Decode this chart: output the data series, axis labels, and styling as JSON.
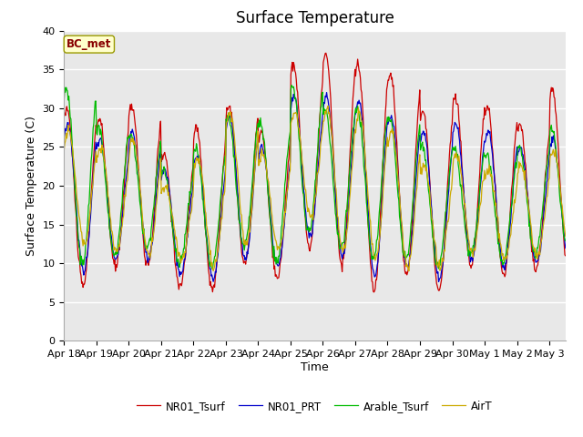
{
  "title": "Surface Temperature",
  "ylabel": "Surface Temperature (C)",
  "xlabel": "Time",
  "annotation": "BC_met",
  "ylim": [
    0,
    40
  ],
  "yticks": [
    0,
    5,
    10,
    15,
    20,
    25,
    30,
    35,
    40
  ],
  "xtick_labels": [
    "Apr 18",
    "Apr 19",
    "Apr 20",
    "Apr 21",
    "Apr 22",
    "Apr 23",
    "Apr 24",
    "Apr 25",
    "Apr 26",
    "Apr 27",
    "Apr 28",
    "Apr 29",
    "Apr 30",
    "May 1",
    "May 2",
    "May 3"
  ],
  "legend_entries": [
    "NR01_Tsurf",
    "NR01_PRT",
    "Arable_Tsurf",
    "AirT"
  ],
  "line_colors": [
    "#cc0000",
    "#0000cc",
    "#00bb00",
    "#ccaa00"
  ],
  "background_color": "#e8e8e8",
  "title_fontsize": 12,
  "label_fontsize": 9,
  "tick_fontsize": 8,
  "annotation_color": "#880000",
  "annotation_bg": "#ffffcc",
  "annotation_edge": "#999900"
}
